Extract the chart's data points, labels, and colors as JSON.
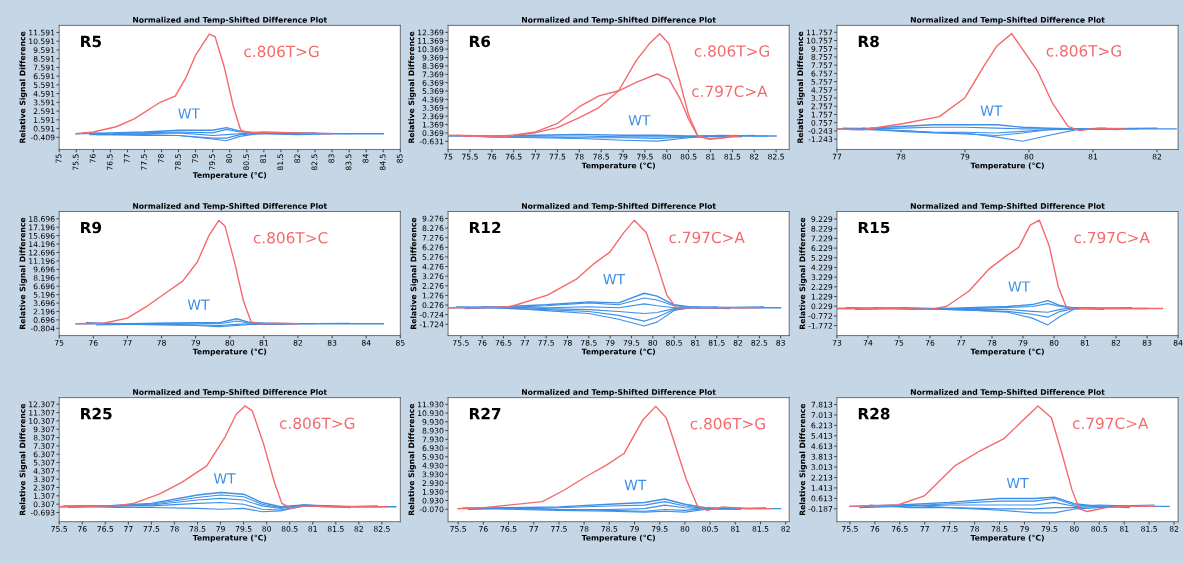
{
  "chart_data": [
    {
      "type": "line",
      "title": "Normalized and Temp-Shifted Difference Plot",
      "xlabel": "Temperature (°C)",
      "ylabel": "Relative Signal Difference",
      "annotations": [
        "R5"
      ],
      "xlim": [
        75,
        85
      ],
      "ylim": [
        -1.8,
        12.4
      ],
      "xticks": [
        75,
        75.5,
        76,
        76.5,
        77,
        77.5,
        78,
        78.5,
        79,
        79.5,
        80,
        80.5,
        81,
        81.5,
        82,
        82.5,
        83,
        83.5,
        84,
        84.5,
        85
      ],
      "yticks": [
        -0.409,
        0.591,
        1.591,
        2.591,
        3.591,
        4.591,
        5.591,
        6.591,
        7.591,
        8.591,
        9.591,
        10.591,
        11.591
      ],
      "series": [
        {
          "color": "#3d8fe8",
          "x": [
            75.5,
            76.5,
            77.5,
            78.5,
            79.5,
            79.9,
            80.3,
            80.8,
            82,
            84.5
          ],
          "values": [
            0,
            0.1,
            0.2,
            0.4,
            0.4,
            0.7,
            0.3,
            0.1,
            0,
            0
          ],
          "name": "WT"
        },
        {
          "color": "#3d8fe8",
          "x": [
            75.7,
            76.5,
            77.5,
            78.5,
            79.5,
            79.9,
            80.3,
            80.8,
            82,
            83.5
          ],
          "values": [
            0.1,
            0,
            0.1,
            0.2,
            0.1,
            0.5,
            0.2,
            0.1,
            0.1,
            0
          ]
        },
        {
          "color": "#3d8fe8",
          "x": [
            75.9,
            76.5,
            77.5,
            78.5,
            79.5,
            79.9,
            80.3,
            80.8,
            82,
            82.5
          ],
          "values": [
            -0.1,
            -0.1,
            0,
            0.1,
            -0.2,
            -0.1,
            0,
            0.1,
            0,
            0.1
          ]
        },
        {
          "color": "#3d8fe8",
          "x": [
            76.1,
            76.5,
            77.5,
            78.5,
            79.5,
            79.9,
            80.3,
            80.8,
            82,
            83
          ],
          "values": [
            -0.1,
            -0.1,
            -0.1,
            -0.2,
            -0.5,
            -0.5,
            -0.1,
            0,
            -0.1,
            0
          ]
        },
        {
          "color": "#3d8fe8",
          "x": [
            76.3,
            76.6,
            77.5,
            78.5,
            79.5,
            79.9,
            80.3,
            80.8,
            81.6
          ],
          "values": [
            0,
            -0.1,
            -0.2,
            -0.2,
            -0.6,
            -0.8,
            -0.3,
            0,
            0.1
          ]
        },
        {
          "name": "c.806T>G",
          "color": "#f4696b",
          "x": [
            75.5,
            76,
            76.67,
            77.2,
            77.96,
            78.4,
            78.7,
            79.0,
            79.4,
            79.57,
            79.84,
            80.1,
            80.32,
            80.54,
            81,
            82,
            83
          ],
          "values": [
            0,
            0.2,
            0.8,
            1.7,
            3.6,
            4.3,
            6.3,
            9.0,
            11.4,
            11.1,
            7.6,
            3.2,
            0.4,
            0.1,
            0.2,
            0.1,
            0
          ]
        }
      ]
    },
    {
      "type": "line",
      "title": "Normalized and Temp-Shifted Difference Plot",
      "xlabel": "Temperature (°C)",
      "ylabel": "Relative Signal Difference",
      "annotations": [
        "R6"
      ],
      "xlim": [
        75,
        82.8
      ],
      "ylim": [
        -1.6,
        13.2
      ],
      "xticks": [
        75,
        75.5,
        76,
        76.5,
        77,
        77.5,
        78,
        78.5,
        79,
        79.5,
        80,
        80.5,
        81,
        81.5,
        82,
        82.5
      ],
      "yticks": [
        -0.631,
        0.369,
        1.369,
        2.369,
        3.369,
        4.369,
        5.369,
        6.369,
        7.369,
        8.369,
        9.369,
        10.369,
        11.369,
        12.369
      ],
      "series": [
        {
          "color": "#3d8fe8",
          "x": [
            75,
            76,
            77,
            78,
            79,
            79.8,
            80.5,
            81.2,
            82.5
          ],
          "values": [
            0,
            0,
            0.1,
            0.2,
            0.1,
            0.1,
            0,
            0,
            0
          ],
          "name": "WT"
        },
        {
          "color": "#3d8fe8",
          "x": [
            75.2,
            76,
            77,
            78,
            79,
            79.8,
            80.5,
            81.2,
            82
          ],
          "values": [
            0.1,
            -0.1,
            -0.1,
            -0.2,
            -0.2,
            -0.3,
            -0.1,
            0,
            0.1
          ]
        },
        {
          "color": "#3d8fe8",
          "x": [
            75.4,
            76,
            77,
            78,
            79,
            79.8,
            80.5,
            81.2,
            81.7
          ],
          "values": [
            0,
            -0.1,
            -0.2,
            -0.3,
            -0.5,
            -0.6,
            -0.2,
            0,
            -0.1
          ]
        },
        {
          "color": "#3d8fe8",
          "x": [
            76.2,
            77,
            78,
            79,
            79.8,
            80.5,
            81.2,
            82.3
          ],
          "values": [
            0,
            0,
            0,
            -0.1,
            -0.1,
            -0.1,
            0.1,
            0
          ]
        },
        {
          "name": "c.806T>G",
          "color": "#f4696b",
          "x": [
            75,
            76,
            76.5,
            77,
            77.5,
            78,
            78.45,
            78.9,
            79.3,
            79.6,
            79.84,
            80.05,
            80.3,
            80.5,
            80.71,
            80.98,
            81.3,
            81.66
          ],
          "values": [
            0.1,
            0,
            0.1,
            0.4,
            1.0,
            2.2,
            3.4,
            5.4,
            9.0,
            11.0,
            12.2,
            11.0,
            6.5,
            2.5,
            0,
            -0.4,
            -0.2,
            0
          ]
        },
        {
          "name": "c.797C>A",
          "color": "#f4696b",
          "x": [
            75.3,
            76.2,
            76.5,
            77,
            77.5,
            78,
            78.45,
            78.9,
            79.3,
            79.78,
            80.05,
            80.3,
            80.5,
            80.71,
            80.98,
            81.3,
            81.55
          ],
          "values": [
            0,
            -0.1,
            0.1,
            0.5,
            1.5,
            3.5,
            4.8,
            5.4,
            6.4,
            7.4,
            6.8,
            4.5,
            2.0,
            0,
            -0.3,
            -0.2,
            0.1
          ]
        }
      ]
    },
    {
      "type": "line",
      "title": "Normalized and Temp-Shifted Difference Plot",
      "xlabel": "Temperature (°C)",
      "ylabel": "Relative Signal Difference",
      "annotations": [
        "R8"
      ],
      "xlim": [
        77,
        82.33
      ],
      "ylim": [
        -2.5,
        12.6
      ],
      "xticks": [
        77,
        78,
        79,
        80,
        81,
        82
      ],
      "yticks": [
        -1.243,
        -0.243,
        0.757,
        1.757,
        2.757,
        3.757,
        4.757,
        5.757,
        6.757,
        7.757,
        8.757,
        9.757,
        10.757,
        11.757
      ],
      "series": [
        {
          "color": "#3d8fe8",
          "x": [
            77,
            77.5,
            78,
            78.5,
            79,
            79.5,
            79.9,
            80.3,
            80.8,
            82.3
          ],
          "values": [
            0,
            0.1,
            0.3,
            0.5,
            0.5,
            0.5,
            0.2,
            0.1,
            0,
            0
          ],
          "name": "WT"
        },
        {
          "color": "#3d8fe8",
          "x": [
            77.1,
            77.5,
            78,
            78.5,
            79,
            79.5,
            79.9,
            80.3,
            80.8,
            82
          ],
          "values": [
            0.1,
            0,
            0.1,
            0.2,
            0.2,
            0.1,
            0,
            0,
            0,
            0.1
          ]
        },
        {
          "color": "#3d8fe8",
          "x": [
            77.2,
            77.5,
            78,
            78.5,
            79,
            79.5,
            79.9,
            80.3,
            80.8,
            81.7
          ],
          "values": [
            -0.1,
            -0.1,
            -0.2,
            -0.4,
            -0.4,
            -0.5,
            -0.3,
            -0.1,
            0,
            0
          ]
        },
        {
          "color": "#3d8fe8",
          "x": [
            77.3,
            77.6,
            78,
            78.5,
            79,
            79.5,
            79.9,
            80.3,
            80.8,
            81.4
          ],
          "values": [
            0,
            -0.1,
            -0.3,
            -0.5,
            -0.6,
            -0.8,
            -0.5,
            -0.1,
            0,
            -0.1
          ]
        },
        {
          "color": "#3d8fe8",
          "x": [
            77.4,
            77.7,
            78,
            78.5,
            79,
            79.5,
            79.9,
            80.3,
            80.8,
            81.2
          ],
          "values": [
            0.1,
            -0.1,
            -0.2,
            -0.4,
            -0.5,
            -1.0,
            -1.5,
            -0.8,
            0,
            0.1
          ]
        },
        {
          "name": "c.806T>G",
          "color": "#f4696b",
          "x": [
            77,
            77.4,
            78,
            78.6,
            79,
            79.3,
            79.5,
            79.73,
            80.13,
            80.37,
            80.61,
            80.79,
            81.09,
            81.5
          ],
          "values": [
            0,
            -0.1,
            0.6,
            1.5,
            3.8,
            7.7,
            10.1,
            11.6,
            7.1,
            3.1,
            0.3,
            -0.2,
            0.1,
            0
          ]
        }
      ]
    },
    {
      "type": "line",
      "title": "Normalized and Temp-Shifted Difference Plot",
      "xlabel": "Temperature (°C)",
      "ylabel": "Relative Signal Difference",
      "annotations": [
        "R9"
      ],
      "xlim": [
        75,
        85
      ],
      "ylim": [
        -2.1,
        20.0
      ],
      "xticks": [
        75,
        76,
        77,
        78,
        79,
        80,
        81,
        82,
        83,
        84,
        85
      ],
      "yticks": [
        -0.804,
        0.696,
        2.196,
        3.696,
        5.196,
        6.696,
        8.196,
        9.696,
        11.196,
        12.696,
        14.196,
        15.696,
        17.196,
        18.696
      ],
      "series": [
        {
          "color": "#3d8fe8",
          "x": [
            75.5,
            77,
            78,
            79,
            79.7,
            80.2,
            80.6,
            81.5,
            84.5
          ],
          "values": [
            0,
            0,
            0.1,
            0.2,
            0.2,
            0.9,
            0.2,
            0,
            0
          ],
          "name": "WT"
        },
        {
          "color": "#3d8fe8",
          "x": [
            75.8,
            77,
            78,
            79,
            79.7,
            80.2,
            80.6,
            81.5,
            83.5
          ],
          "values": [
            0.2,
            0,
            0.1,
            0.1,
            0,
            0.5,
            0.1,
            0,
            0.1
          ]
        },
        {
          "color": "#3d8fe8",
          "x": [
            76.1,
            77,
            78,
            79,
            79.7,
            80.2,
            80.6,
            81.5,
            82.5
          ],
          "values": [
            -0.2,
            -0.1,
            -0.1,
            -0.2,
            -0.3,
            -0.1,
            0,
            0.1,
            0
          ]
        },
        {
          "color": "#3d8fe8",
          "x": [
            76.4,
            77.2,
            78,
            79,
            79.7,
            80.2,
            80.6,
            81.5,
            82
          ],
          "values": [
            0,
            -0.1,
            -0.2,
            -0.3,
            -0.5,
            -0.3,
            -0.1,
            -0.1,
            0
          ]
        },
        {
          "name": "c.806T>C",
          "color": "#f4696b",
          "x": [
            75.5,
            76.3,
            77.0,
            77.54,
            78.08,
            78.62,
            79.05,
            79.38,
            79.68,
            79.86,
            80.14,
            80.4,
            80.62,
            80.89,
            81.2,
            82
          ],
          "values": [
            0,
            0.1,
            1.0,
            3.0,
            5.3,
            7.6,
            11.0,
            15.6,
            18.4,
            17.4,
            11.0,
            4.1,
            0.4,
            -0.1,
            0.1,
            0
          ]
        }
      ]
    },
    {
      "type": "line",
      "title": "Normalized and Temp-Shifted Difference Plot",
      "xlabel": "Temperature (°C)",
      "ylabel": "Relative Signal Difference",
      "annotations": [
        "R12"
      ],
      "xlim": [
        75.2,
        83.2
      ],
      "ylim": [
        -2.9,
        10.0
      ],
      "xticks": [
        75.5,
        76,
        76.5,
        77,
        77.5,
        78,
        78.5,
        79,
        79.5,
        80,
        80.5,
        81,
        81.5,
        82,
        82.5,
        83
      ],
      "yticks": [
        -1.724,
        -0.724,
        0.276,
        1.276,
        2.276,
        3.276,
        4.276,
        5.276,
        6.276,
        7.276,
        8.276,
        9.276
      ],
      "series": [
        {
          "color": "#3d8fe8",
          "x": [
            75.2,
            76.5,
            77.5,
            78.5,
            79.2,
            79.8,
            80.1,
            80.5,
            81,
            83
          ],
          "values": [
            0,
            0.1,
            0.3,
            0.6,
            0.5,
            1.5,
            1.2,
            0.3,
            0,
            0
          ],
          "name": "WT"
        },
        {
          "color": "#3d8fe8",
          "x": [
            75.4,
            76.5,
            77.5,
            78.5,
            79.2,
            79.8,
            80.1,
            80.5,
            81,
            82.6
          ],
          "values": [
            0.1,
            0,
            0.2,
            0.5,
            0.3,
            1.0,
            0.8,
            0.2,
            0,
            0.1
          ]
        },
        {
          "color": "#3d8fe8",
          "x": [
            75.6,
            76.5,
            77.5,
            78.5,
            79.2,
            79.8,
            80.1,
            80.5,
            81,
            82.2
          ],
          "values": [
            -0.1,
            0,
            0,
            0.1,
            0,
            0.4,
            0.2,
            0,
            0.1,
            0
          ]
        },
        {
          "color": "#3d8fe8",
          "x": [
            75.8,
            76.6,
            77.5,
            78.5,
            79.2,
            79.8,
            80.1,
            80.5,
            81,
            81.8
          ],
          "values": [
            0,
            0.1,
            -0.1,
            -0.2,
            -0.4,
            -0.6,
            -0.5,
            -0.1,
            0,
            -0.1
          ]
        },
        {
          "color": "#3d8fe8",
          "x": [
            76.0,
            76.7,
            77.5,
            78.5,
            79.2,
            79.8,
            80.1,
            80.5,
            81,
            81.5
          ],
          "values": [
            0.1,
            -0.1,
            -0.2,
            -0.4,
            -0.8,
            -1.4,
            -1.0,
            -0.2,
            0,
            0.1
          ]
        },
        {
          "color": "#3d8fe8",
          "x": [
            76.2,
            76.8,
            77.5,
            78.5,
            79.2,
            79.8,
            80.1,
            80.5,
            81,
            81.3
          ],
          "values": [
            0,
            -0.1,
            -0.3,
            -0.6,
            -1.2,
            -1.9,
            -1.5,
            -0.3,
            0.1,
            0
          ]
        },
        {
          "name": "c.797C>A",
          "color": "#f4696b",
          "x": [
            75.2,
            76,
            76.66,
            77.53,
            78.22,
            78.6,
            79.0,
            79.32,
            79.57,
            79.85,
            80.11,
            80.33,
            80.55,
            81,
            82.5
          ],
          "values": [
            0,
            0,
            0.1,
            1.3,
            3.0,
            4.5,
            5.8,
            7.8,
            9.1,
            7.8,
            4.4,
            1.3,
            0,
            0,
            0
          ]
        }
      ]
    },
    {
      "type": "line",
      "title": "Normalized and Temp-Shifted Difference Plot",
      "xlabel": "Temperature (°C)",
      "ylabel": "Relative Signal Difference",
      "annotations": [
        "R15"
      ],
      "xlim": [
        73,
        84
      ],
      "ylim": [
        -2.8,
        10.0
      ],
      "xticks": [
        73,
        74,
        75,
        76,
        77,
        78,
        79,
        80,
        81,
        82,
        83,
        84
      ],
      "yticks": [
        -1.772,
        -0.772,
        0.229,
        1.229,
        2.229,
        3.229,
        4.229,
        5.229,
        6.229,
        7.229,
        8.229,
        9.229
      ],
      "series": [
        {
          "color": "#3d8fe8",
          "x": [
            73,
            75,
            76.5,
            77.5,
            78.5,
            79.3,
            79.8,
            80.2,
            80.7,
            83
          ],
          "values": [
            0,
            0,
            0,
            0.1,
            0.2,
            0.4,
            0.8,
            0.3,
            0,
            0
          ],
          "name": "WT"
        },
        {
          "color": "#3d8fe8",
          "x": [
            73.3,
            75,
            76.5,
            77.5,
            78.5,
            79.3,
            79.8,
            80.2,
            80.7,
            82.5
          ],
          "values": [
            0.1,
            0,
            0,
            0,
            0.1,
            0.2,
            0.5,
            0.2,
            0,
            0.1
          ]
        },
        {
          "color": "#3d8fe8",
          "x": [
            73.6,
            75,
            76.5,
            77.5,
            78.5,
            79.3,
            79.8,
            80.2,
            80.7,
            82
          ],
          "values": [
            -0.1,
            0,
            -0.1,
            -0.1,
            -0.1,
            -0.3,
            -0.4,
            -0.1,
            0.1,
            0
          ]
        },
        {
          "color": "#3d8fe8",
          "x": [
            73.9,
            75.2,
            76.5,
            77.5,
            78.5,
            79.3,
            79.8,
            80.2,
            80.7,
            81.6
          ],
          "values": [
            0,
            0.1,
            -0.1,
            -0.2,
            -0.3,
            -0.6,
            -0.9,
            -0.3,
            0,
            -0.1
          ]
        },
        {
          "color": "#3d8fe8",
          "x": [
            74.2,
            75.4,
            76.5,
            77.5,
            78.5,
            79.3,
            79.8,
            80.2,
            80.7,
            81.3
          ],
          "values": [
            0.1,
            -0.1,
            -0.1,
            -0.2,
            -0.4,
            -1.0,
            -1.7,
            -0.8,
            0,
            0.1
          ]
        },
        {
          "name": "c.797C>A",
          "color": "#f4696b",
          "x": [
            73,
            75,
            76,
            76.53,
            77.26,
            77.88,
            78.49,
            78.86,
            79.23,
            79.53,
            79.84,
            80.14,
            80.39,
            80.57,
            81,
            83.5
          ],
          "values": [
            0,
            0,
            -0.1,
            0.2,
            1.8,
            4.0,
            5.5,
            6.3,
            8.6,
            9.1,
            6.5,
            2.2,
            0.2,
            -0.1,
            0,
            0
          ]
        }
      ]
    },
    {
      "type": "line",
      "title": "Normalized and Temp-Shifted Difference Plot",
      "xlabel": "Temperature (°C)",
      "ylabel": "Relative Signal Difference",
      "annotations": [
        "R25"
      ],
      "xlim": [
        75.5,
        82.9
      ],
      "ylim": [
        -1.8,
        13.1
      ],
      "xticks": [
        75.5,
        76,
        76.5,
        77,
        77.5,
        78,
        78.5,
        79,
        79.5,
        80,
        80.5,
        81,
        81.5,
        82,
        82.5
      ],
      "yticks": [
        -0.693,
        0.307,
        1.307,
        2.307,
        3.307,
        4.307,
        5.307,
        6.307,
        7.307,
        8.307,
        9.307,
        10.307,
        11.307,
        12.307
      ],
      "series": [
        {
          "color": "#3d8fe8",
          "x": [
            75.5,
            76.5,
            77.5,
            78.5,
            79.0,
            79.5,
            79.9,
            80.3,
            80.8,
            81.5,
            82.8
          ],
          "values": [
            0,
            0.1,
            0.4,
            1.4,
            1.7,
            1.5,
            0.5,
            0,
            0.2,
            0,
            0
          ],
          "name": "WT"
        },
        {
          "color": "#3d8fe8",
          "x": [
            75.6,
            76.5,
            77.5,
            78.5,
            79.0,
            79.5,
            79.9,
            80.3,
            80.8,
            81.5,
            82.4
          ],
          "values": [
            0.1,
            0.1,
            0.3,
            1.1,
            1.4,
            1.2,
            0.3,
            -0.1,
            0.2,
            0,
            0.1
          ]
        },
        {
          "color": "#3d8fe8",
          "x": [
            75.7,
            76.5,
            77.5,
            78.5,
            79.0,
            79.5,
            79.9,
            80.3,
            80.8,
            81.5,
            82
          ],
          "values": [
            -0.1,
            0,
            0.2,
            0.8,
            1.0,
            0.8,
            0.1,
            -0.2,
            0.2,
            0.1,
            0
          ]
        },
        {
          "color": "#3d8fe8",
          "x": [
            75.8,
            76.6,
            77.5,
            78.5,
            79.0,
            79.5,
            79.9,
            80.3,
            80.8,
            81.5,
            81.8
          ],
          "values": [
            0,
            0.1,
            0.1,
            0.4,
            0.5,
            0.3,
            -0.3,
            -0.4,
            0.1,
            0,
            -0.1
          ]
        },
        {
          "color": "#3d8fe8",
          "x": [
            75.9,
            76.7,
            77.5,
            78.5,
            79.0,
            79.5,
            79.9,
            80.3,
            80.8,
            81.3
          ],
          "values": [
            0.1,
            -0.1,
            -0.1,
            -0.2,
            -0.3,
            -0.2,
            -0.6,
            -0.5,
            0.1,
            0
          ]
        },
        {
          "name": "c.806T>G",
          "color": "#f4696b",
          "x": [
            75.5,
            76.72,
            77.11,
            77.67,
            78.15,
            78.7,
            79.1,
            79.34,
            79.53,
            79.69,
            79.93,
            80.17,
            80.33,
            80.53,
            80.85,
            81.3,
            82.6
          ],
          "values": [
            0,
            0.1,
            0.4,
            1.5,
            2.9,
            4.9,
            8.4,
            11.1,
            12.1,
            11.5,
            7.6,
            2.9,
            0.4,
            -0.2,
            0.1,
            0,
            0
          ]
        }
      ]
    },
    {
      "type": "line",
      "title": "Normalized and Temp-Shifted Difference Plot",
      "xlabel": "Temperature (°C)",
      "ylabel": "Relative Signal Difference",
      "annotations": [
        "R27"
      ],
      "xlim": [
        75.3,
        82.07
      ],
      "ylim": [
        -1.5,
        12.7
      ],
      "xticks": [
        75.5,
        76,
        76.5,
        77,
        77.5,
        78,
        78.5,
        79,
        79.5,
        80,
        80.5,
        81,
        81.5,
        82
      ],
      "yticks": [
        {
          "value": -0.07,
          "label": "-0.070"
        },
        {
          "value": 0.93,
          "label": "0.930"
        },
        {
          "value": 1.93,
          "label": "1.930"
        },
        {
          "value": 2.93,
          "label": "2.930"
        },
        {
          "value": 3.93,
          "label": "3.930"
        },
        {
          "value": 4.93,
          "label": "4.930"
        },
        {
          "value": 5.93,
          "label": "5.930"
        },
        {
          "value": 6.93,
          "label": "6.930"
        },
        {
          "value": 7.93,
          "label": "7.930"
        },
        {
          "value": 8.93,
          "label": "8.930"
        },
        {
          "value": 9.93,
          "label": "9.930"
        },
        {
          "value": 10.93,
          "label": "10.930"
        },
        {
          "value": 11.93,
          "label": "11.930"
        }
      ],
      "series": [
        {
          "color": "#3d8fe8",
          "x": [
            75.5,
            76.5,
            77.5,
            78.5,
            79.2,
            79.6,
            80,
            80.4,
            81,
            81.9
          ],
          "values": [
            0,
            0.1,
            0.2,
            0.5,
            0.7,
            1.1,
            0.5,
            0.1,
            0,
            0
          ],
          "name": "WT"
        },
        {
          "color": "#3d8fe8",
          "x": [
            75.6,
            76.5,
            77.5,
            78.5,
            79.2,
            79.6,
            80,
            80.4,
            81,
            81.6
          ],
          "values": [
            0.1,
            0,
            0.1,
            0.3,
            0.4,
            0.8,
            0.3,
            0,
            0,
            0.1
          ]
        },
        {
          "color": "#3d8fe8",
          "x": [
            75.7,
            76.5,
            77.5,
            78.5,
            79.2,
            79.6,
            80,
            80.4,
            81,
            81.3
          ],
          "values": [
            -0.1,
            0,
            -0.1,
            -0.1,
            0,
            0.4,
            0.1,
            0,
            0.1,
            0
          ]
        },
        {
          "color": "#3d8fe8",
          "x": [
            75.8,
            76.6,
            77.5,
            78.5,
            79.2,
            79.6,
            80,
            80.4,
            81.1
          ],
          "values": [
            0,
            0.1,
            -0.1,
            -0.2,
            -0.3,
            -0.1,
            -0.2,
            0,
            -0.1
          ]
        },
        {
          "color": "#3d8fe8",
          "x": [
            75.9,
            76.7,
            77.5,
            78.5,
            79.2,
            79.6,
            80,
            80.4,
            80.9
          ],
          "values": [
            0.1,
            -0.1,
            -0.2,
            -0.3,
            -0.4,
            -0.3,
            -0.4,
            -0.1,
            0
          ]
        },
        {
          "name": "c.806T>G",
          "color": "#f4696b",
          "x": [
            75.5,
            76,
            76.5,
            77.17,
            77.6,
            78.05,
            78.45,
            78.79,
            79.16,
            79.42,
            79.63,
            79.8,
            80.03,
            80.25,
            80.44,
            80.76,
            81.2,
            81.7
          ],
          "values": [
            0,
            0.1,
            0.4,
            0.8,
            2.1,
            3.7,
            5.0,
            6.3,
            10.1,
            11.7,
            10.4,
            7.4,
            3.3,
            0.3,
            -0.2,
            0.2,
            0,
            0
          ]
        }
      ]
    },
    {
      "type": "line",
      "title": "Normalized and Temp-Shifted Difference Plot",
      "xlabel": "Temperature (°C)",
      "ylabel": "Relative Signal Difference",
      "annotations": [
        "R28"
      ],
      "xlim": [
        75.24,
        82.08
      ],
      "ylim": [
        -1.18,
        8.34
      ],
      "xticks": [
        75.5,
        76,
        76.5,
        77,
        77.5,
        78,
        78.5,
        79,
        79.5,
        80,
        80.5,
        81,
        81.5,
        82
      ],
      "yticks": [
        -0.187,
        0.613,
        1.413,
        2.213,
        3.013,
        3.813,
        4.613,
        5.413,
        6.213,
        7.013,
        7.813
      ],
      "series": [
        {
          "color": "#3d8fe8",
          "x": [
            75.5,
            76.5,
            77.5,
            78.5,
            79.2,
            79.6,
            80,
            80.5,
            81.9
          ],
          "values": [
            0,
            0.1,
            0.3,
            0.6,
            0.6,
            0.7,
            0.2,
            0,
            0
          ],
          "name": "WT"
        },
        {
          "color": "#3d8fe8",
          "x": [
            76.5,
            77.5,
            78.5,
            79.2,
            79.6,
            80,
            80.5,
            81.6
          ],
          "values": [
            0,
            0.2,
            0.4,
            0.4,
            0.6,
            0.1,
            0,
            0.1
          ]
        },
        {
          "color": "#3d8fe8",
          "x": [
            75.7,
            76.5,
            77.5,
            78.5,
            79.2,
            79.6,
            80,
            80.5,
            81.3
          ],
          "values": [
            -0.1,
            0,
            0.1,
            0.1,
            0.1,
            0.3,
            0,
            0.1,
            0
          ]
        },
        {
          "color": "#3d8fe8",
          "x": [
            75.8,
            76.6,
            77.5,
            78.5,
            79.2,
            79.6,
            80,
            80.5,
            81.1
          ],
          "values": [
            0,
            0.1,
            -0.1,
            -0.2,
            -0.2,
            -0.1,
            -0.1,
            0,
            -0.1
          ]
        },
        {
          "color": "#3d8fe8",
          "x": [
            75.9,
            76.7,
            77.5,
            78.5,
            79.2,
            79.6,
            80,
            80.5,
            80.9
          ],
          "values": [
            0.1,
            -0.1,
            -0.1,
            -0.3,
            -0.5,
            -0.5,
            -0.2,
            -0.1,
            0
          ]
        },
        {
          "name": "c.797C>A",
          "color": "#f4696b",
          "x": [
            75.5,
            76.46,
            76.99,
            77.6,
            78.13,
            78.59,
            78.97,
            79.27,
            79.54,
            79.77,
            79.95,
            80.1,
            80.26,
            80.64,
            80.94,
            81.6
          ],
          "values": [
            0,
            0.1,
            0.8,
            3.1,
            4.3,
            5.2,
            6.6,
            7.7,
            6.8,
            3.8,
            1.3,
            -0.2,
            -0.4,
            -0.1,
            0,
            0
          ]
        }
      ]
    }
  ]
}
